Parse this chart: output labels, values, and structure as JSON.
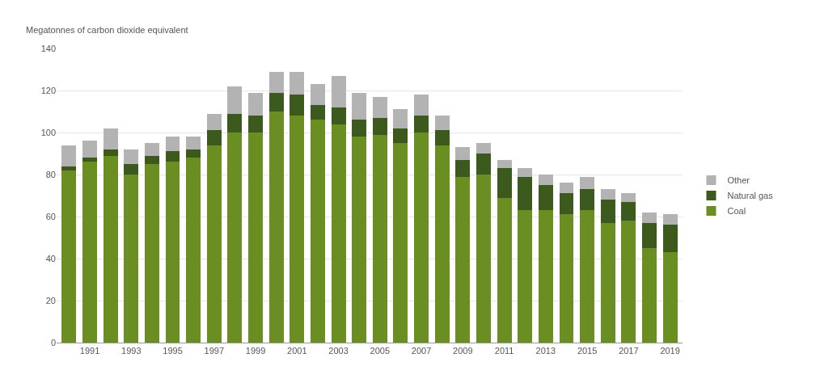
{
  "chart_data": {
    "type": "bar",
    "stacked": true,
    "ylabel": "Megatonnes of carbon dioxide equivalent",
    "categories": [
      null,
      "1991",
      null,
      "1993",
      null,
      "1995",
      null,
      "1997",
      null,
      "1999",
      null,
      "2001",
      null,
      "2003",
      null,
      "2005",
      null,
      "2007",
      null,
      "2009",
      null,
      "2011",
      null,
      "2013",
      null,
      "2015",
      null,
      "2017",
      null,
      "2019"
    ],
    "series": [
      {
        "name": "Coal",
        "color": "#6b8e23",
        "values": [
          82,
          86,
          89,
          80,
          85,
          86,
          88,
          94,
          100,
          100,
          110,
          108,
          106,
          104,
          98,
          99,
          95,
          100,
          94,
          79,
          80,
          69,
          63,
          63,
          61,
          63,
          57,
          58,
          45,
          43
        ]
      },
      {
        "name": "Natural gas",
        "color": "#3d5a1e",
        "values": [
          2,
          2,
          3,
          5,
          4,
          5,
          4,
          7,
          9,
          8,
          9,
          10,
          7,
          8,
          8,
          8,
          7,
          8,
          7,
          8,
          10,
          14,
          16,
          12,
          10,
          10,
          11,
          9,
          12,
          13
        ]
      },
      {
        "name": "Other",
        "color": "#b3b3b3",
        "values": [
          10,
          8,
          10,
          7,
          6,
          7,
          6,
          8,
          13,
          11,
          10,
          11,
          10,
          15,
          13,
          10,
          9,
          10,
          7,
          6,
          5,
          4,
          4,
          5,
          5,
          6,
          5,
          4,
          5,
          5
        ]
      }
    ],
    "ylim": [
      0,
      140
    ],
    "yticks": [
      0,
      20,
      40,
      60,
      80,
      100,
      120,
      140
    ],
    "grid": "y",
    "legend": "right"
  }
}
